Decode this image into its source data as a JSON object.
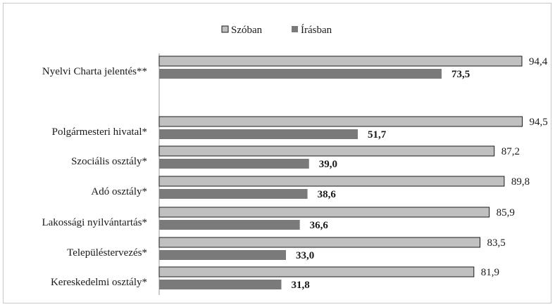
{
  "chart_data": {
    "type": "bar",
    "orientation": "horizontal",
    "title": "",
    "xlabel": "",
    "ylabel": "",
    "xlim": [
      0,
      100
    ],
    "grid": false,
    "legend_position": "top",
    "categories": [
      "Nyelvi Charta jelentés**",
      "Polgármesteri hivatal*",
      "Szociális osztály*",
      "Adó osztály*",
      "Lakossági nyilvántartás*",
      "Településtervezés*",
      "Kereskedelmi osztály*"
    ],
    "series": [
      {
        "name": "Szóban",
        "color": "#c0c0c0",
        "value_labels": [
          "94,4",
          "94,5",
          "87,2",
          "89,8",
          "85,9",
          "83,5",
          "81,9"
        ],
        "values": [
          94.4,
          94.5,
          87.2,
          89.8,
          85.9,
          83.5,
          81.9
        ]
      },
      {
        "name": "Írásban",
        "color": "#7a7a7a",
        "value_labels": [
          "73,5",
          "51,7",
          "39,0",
          "38,6",
          "36,6",
          "33,0",
          "31,8"
        ],
        "values": [
          73.5,
          51.7,
          39.0,
          38.6,
          36.6,
          33.0,
          31.8
        ]
      }
    ]
  }
}
